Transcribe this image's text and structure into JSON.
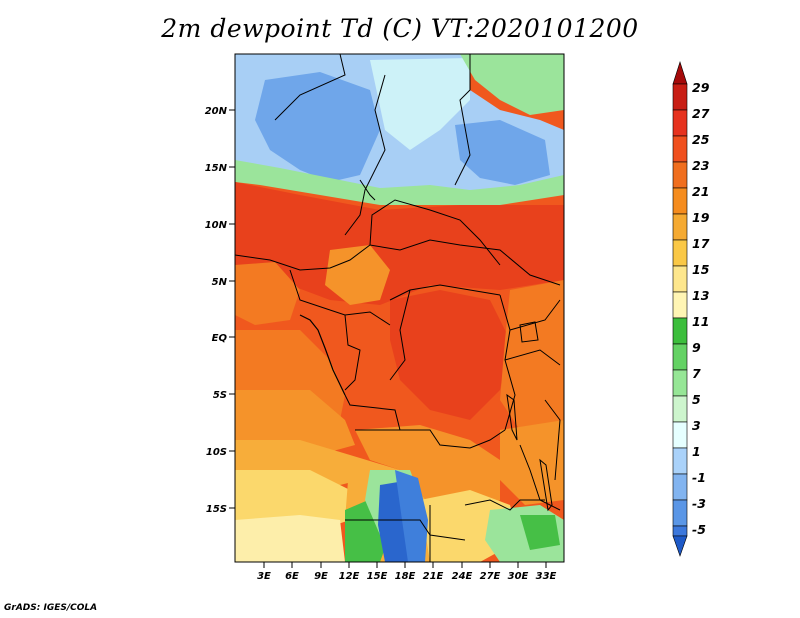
{
  "title": "2m dewpoint Td (C) VT:2020101200",
  "credit": "GrADS: IGES/COLA",
  "lat_labels": [
    "20N",
    "15N",
    "10N",
    "5N",
    "EQ",
    "5S",
    "10S",
    "15S"
  ],
  "lon_labels": [
    "3E",
    "6E",
    "9E",
    "12E",
    "15E",
    "18E",
    "21E",
    "24E",
    "27E",
    "30E",
    "33E"
  ],
  "colorbar": {
    "labels": [
      "29",
      "27",
      "25",
      "23",
      "21",
      "19",
      "17",
      "15",
      "13",
      "11",
      "9",
      "7",
      "5",
      "3",
      "1",
      "-1",
      "-3",
      "-5"
    ],
    "colors": [
      "#a50a0a",
      "#c81e14",
      "#e6321e",
      "#f0501e",
      "#f06e1e",
      "#f58c1e",
      "#f5aa32",
      "#fac846",
      "#fde68c",
      "#fff5b4",
      "#3cbe3c",
      "#64d264",
      "#96e696",
      "#cdf5cd",
      "#e6ffff",
      "#aad2fa",
      "#82b4f0",
      "#5a96e6",
      "#3c78dc",
      "#1e5ac8"
    ]
  },
  "map_colors": {
    "vhot": "#e8411c",
    "hot": "#f0581e",
    "warm": "#f37a22",
    "orange": "#f5932a",
    "lorange": "#f7ad3a",
    "yellow": "#fbd86c",
    "pale": "#fdeeaa",
    "lgreen": "#9be49b",
    "green": "#46bf46",
    "cyan": "#cdf2f8",
    "lblue": "#a8cff5",
    "blue": "#6fa6ea",
    "dblue": "#3f7fdb",
    "navy": "#2a66cd"
  }
}
